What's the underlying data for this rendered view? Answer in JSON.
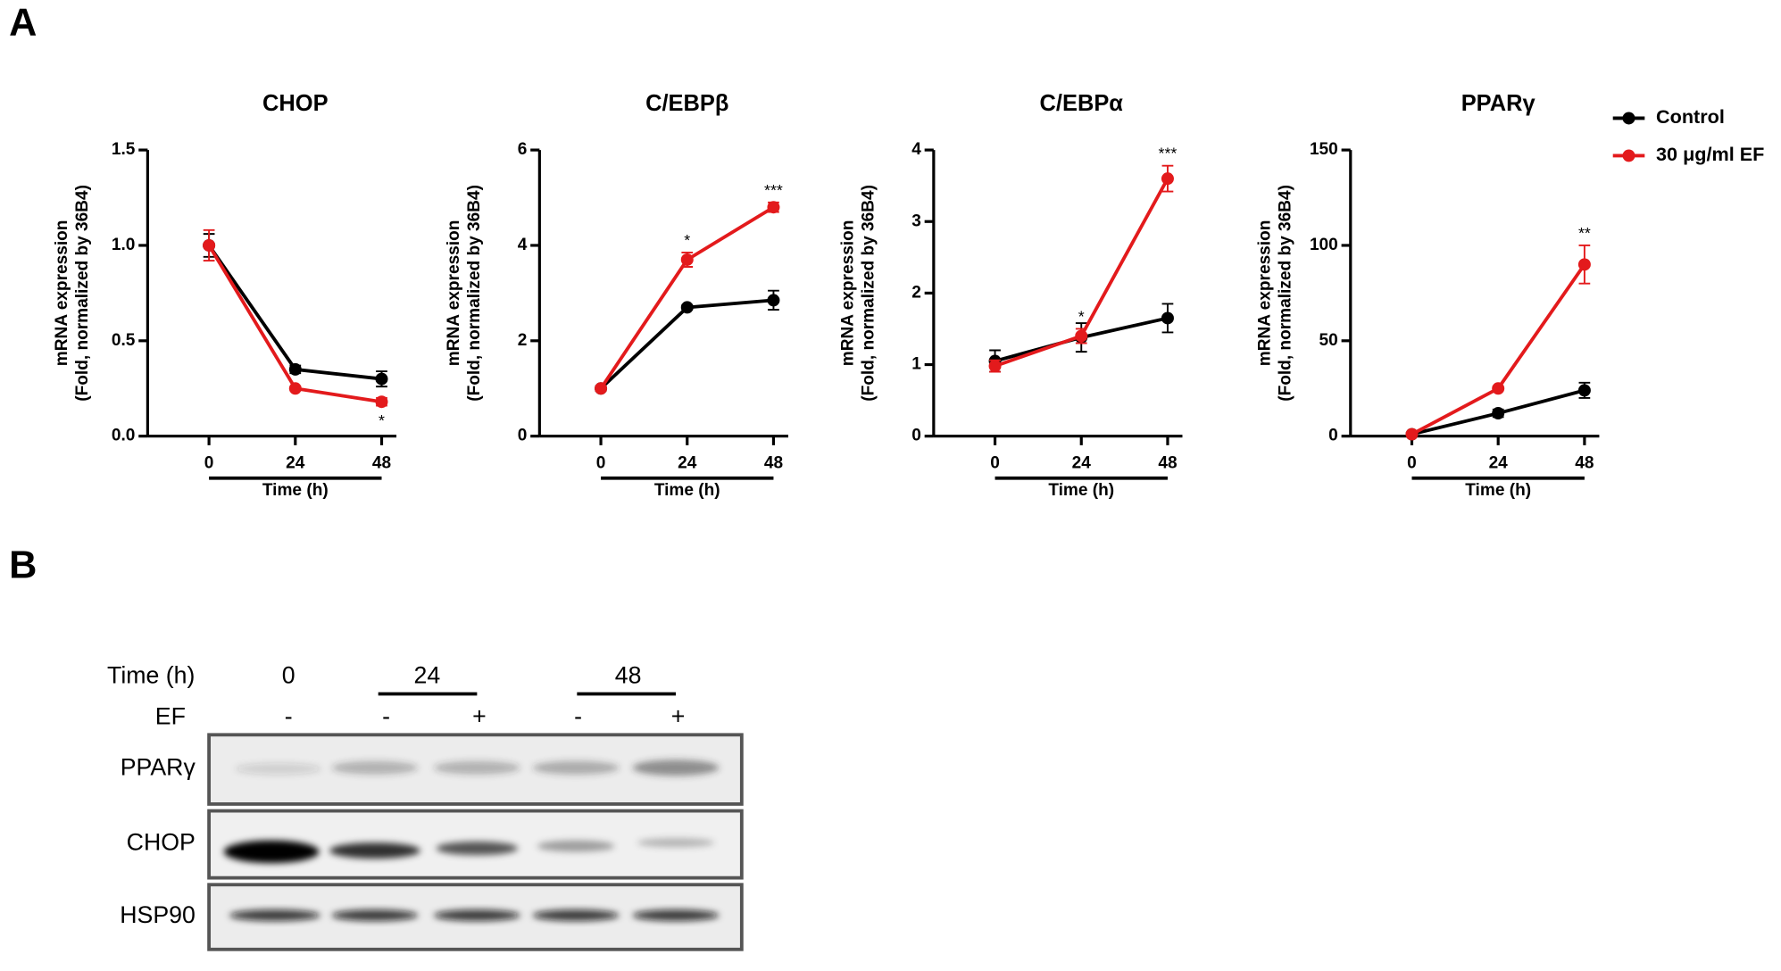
{
  "panel_labels": [
    "A",
    "B"
  ],
  "chart_data": [
    {
      "type": "line",
      "title": "CHOP",
      "ylabel": [
        "mRNA expression",
        "(Fold, normalized by 36B4)"
      ],
      "xlabel": "Time (h)",
      "x": [
        0,
        24,
        48
      ],
      "xlim": [
        -17,
        52
      ],
      "xticks": [
        0,
        24,
        48
      ],
      "ylim": [
        0,
        1.5
      ],
      "yticks": [
        {
          "value": 0,
          "label": "0.0"
        },
        0.5,
        {
          "value": 1,
          "label": "1.0"
        },
        1.5
      ],
      "series": [
        {
          "color": "#000000",
          "values": [
            1.0,
            0.35,
            0.3
          ],
          "errors": [
            0.06,
            0.02,
            0.04
          ]
        },
        {
          "color": "#e31a1c",
          "values": [
            1.0,
            0.25,
            0.18
          ],
          "errors": [
            0.08,
            0.01,
            0.02
          ],
          "significance": [
            null,
            null,
            "*"
          ]
        }
      ]
    },
    {
      "type": "line",
      "title": "C/EBPβ",
      "ylabel": [
        "mRNA expression",
        "(Fold, normalized by 36B4)"
      ],
      "xlabel": "Time (h)",
      "x": [
        0,
        24,
        48
      ],
      "xlim": [
        -17,
        52
      ],
      "xticks": [
        0,
        24,
        48
      ],
      "ylim": [
        0,
        6
      ],
      "yticks": [
        0,
        2,
        4,
        6
      ],
      "series": [
        {
          "color": "#000000",
          "values": [
            1.0,
            2.7,
            2.85
          ],
          "errors": [
            0.05,
            0.05,
            0.2
          ]
        },
        {
          "color": "#e31a1c",
          "values": [
            1.0,
            3.7,
            4.8
          ],
          "errors": [
            0.05,
            0.15,
            0.1
          ],
          "significance": [
            null,
            "*",
            "***"
          ]
        }
      ]
    },
    {
      "type": "line",
      "title": "C/EBPα",
      "ylabel": [
        "mRNA expression",
        "(Fold, normalized by 36B4)"
      ],
      "xlabel": "Time (h)",
      "x": [
        0,
        24,
        48
      ],
      "xlim": [
        -17,
        52
      ],
      "xticks": [
        0,
        24,
        48
      ],
      "ylim": [
        0,
        4
      ],
      "yticks": [
        0,
        1,
        2,
        3,
        4
      ],
      "series": [
        {
          "color": "#000000",
          "values": [
            1.05,
            1.38,
            1.65
          ],
          "errors": [
            0.15,
            0.2,
            0.2
          ]
        },
        {
          "color": "#e31a1c",
          "values": [
            0.98,
            1.4,
            3.6
          ],
          "errors": [
            0.08,
            0.1,
            0.18
          ],
          "significance": [
            null,
            "*",
            "***"
          ]
        }
      ]
    },
    {
      "type": "line",
      "title": "PPARγ",
      "ylabel": [
        "mRNA expression",
        "(Fold, normalized by 36B4)"
      ],
      "xlabel": "Time (h)",
      "x": [
        0,
        24,
        48
      ],
      "xlim": [
        -17,
        52
      ],
      "xticks": [
        0,
        24,
        48
      ],
      "ylim": [
        0,
        150
      ],
      "yticks": [
        0,
        50,
        100,
        150
      ],
      "legend": "upper right",
      "series": [
        {
          "name": "Control",
          "color": "#000000",
          "values": [
            1,
            12,
            24
          ],
          "errors": [
            0.5,
            2,
            4
          ]
        },
        {
          "name": "30 μg/ml EF",
          "color": "#e31a1c",
          "values": [
            1,
            25,
            90
          ],
          "errors": [
            0.5,
            1,
            10
          ],
          "significance": [
            null,
            null,
            "**"
          ]
        }
      ]
    }
  ],
  "blot": {
    "time_label": "Time (h)",
    "time_groups": [
      "0",
      "24",
      "48"
    ],
    "ef_label": "EF",
    "ef": [
      "-",
      "-",
      "+",
      "-",
      "+"
    ],
    "rows": [
      "PPARγ",
      "CHOP",
      "HSP90"
    ]
  }
}
